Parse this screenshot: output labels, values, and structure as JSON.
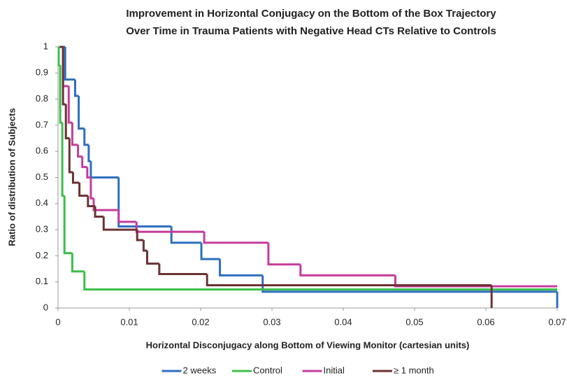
{
  "chart_data": {
    "type": "step",
    "title": [
      "Improvement in Horizontal Conjugacy on the Bottom of the Box Trajectory",
      "Over Time in Trauma Patients with Negative Head CTs Relative to Controls"
    ],
    "x_label": "Horizontal Disconjugacy along Bottom of Viewing Monitor (cartesian units)",
    "y_label": "Ratio of distribution of Subjects",
    "xlim": [
      0,
      0.07
    ],
    "xticks": [
      0,
      0.01,
      0.02,
      0.03,
      0.04,
      0.05,
      0.06,
      0.07
    ],
    "ylim": [
      0,
      1
    ],
    "yticks": [
      0,
      0.1,
      0.2,
      0.3,
      0.4,
      0.5,
      0.6,
      0.7,
      0.8,
      0.9,
      1
    ],
    "grid": false,
    "legend": "bottom",
    "series": [
      {
        "name": "2 weeks",
        "color": "#2e6fc0",
        "x": [
          0.0005,
          0.001,
          0.0024,
          0.0029,
          0.0037,
          0.0043,
          0.0046,
          0.0085,
          0.0159,
          0.0201,
          0.0227,
          0.0287,
          0.07
        ],
        "values": [
          1,
          0.875,
          0.8125,
          0.6875,
          0.625,
          0.5625,
          0.5,
          0.3125,
          0.25,
          0.1875,
          0.125,
          0.0625,
          0
        ]
      },
      {
        "name": "Control",
        "color": "#3cbf4a",
        "x": [
          0,
          0.0001,
          0.0003,
          0.0006,
          0.0009,
          0.002,
          0.0037,
          0.07
        ],
        "values": [
          1,
          0.93,
          0.71,
          0.43,
          0.21,
          0.14,
          0.071,
          0.071
        ]
      },
      {
        "name": "Initial",
        "color": "#c43c9c",
        "x": [
          0.0003,
          0.0007,
          0.0015,
          0.002,
          0.0028,
          0.0034,
          0.0041,
          0.0046,
          0.005,
          0.0085,
          0.011,
          0.0205,
          0.0295,
          0.034,
          0.0473,
          0.07
        ],
        "values": [
          1,
          0.85,
          0.71,
          0.625,
          0.58,
          0.54,
          0.5,
          0.42,
          0.375,
          0.33,
          0.292,
          0.25,
          0.167,
          0.125,
          0.083,
          0.083
        ]
      },
      {
        "name": "≥ 1 month",
        "color": "#6b3232",
        "x": [
          0.0002,
          0.0007,
          0.0011,
          0.0016,
          0.0021,
          0.003,
          0.0042,
          0.0052,
          0.0064,
          0.0111,
          0.012,
          0.0125,
          0.0142,
          0.0209,
          0.0608
        ],
        "values": [
          1,
          0.78,
          0.65,
          0.52,
          0.48,
          0.43,
          0.39,
          0.35,
          0.3,
          0.26,
          0.22,
          0.17,
          0.13,
          0.087,
          0
        ]
      }
    ]
  }
}
